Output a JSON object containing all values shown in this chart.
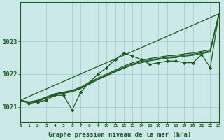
{
  "hours": [
    0,
    1,
    2,
    3,
    4,
    5,
    6,
    7,
    8,
    9,
    10,
    11,
    12,
    13,
    14,
    15,
    16,
    17,
    18,
    19,
    20,
    21,
    22,
    23
  ],
  "main_line": [
    1021.2,
    1021.1,
    1021.15,
    1021.2,
    1021.35,
    1021.35,
    1020.9,
    1021.45,
    1021.75,
    1022.0,
    1022.2,
    1022.45,
    1022.65,
    1022.55,
    1022.45,
    1022.3,
    1022.35,
    1022.4,
    1022.4,
    1022.35,
    1022.35,
    1022.6,
    1022.2,
    1023.85
  ],
  "smooth1": [
    1021.2,
    1021.15,
    1021.2,
    1021.3,
    1021.4,
    1021.45,
    1021.5,
    1021.6,
    1021.75,
    1021.88,
    1022.0,
    1022.12,
    1022.25,
    1022.35,
    1022.42,
    1022.48,
    1022.52,
    1022.56,
    1022.58,
    1022.62,
    1022.65,
    1022.7,
    1022.75,
    1023.85
  ],
  "smooth2": [
    1021.2,
    1021.14,
    1021.18,
    1021.28,
    1021.38,
    1021.43,
    1021.48,
    1021.58,
    1021.72,
    1021.85,
    1021.97,
    1022.09,
    1022.21,
    1022.31,
    1022.38,
    1022.44,
    1022.48,
    1022.52,
    1022.54,
    1022.58,
    1022.61,
    1022.66,
    1022.71,
    1023.85
  ],
  "smooth3": [
    1021.2,
    1021.13,
    1021.17,
    1021.26,
    1021.36,
    1021.41,
    1021.46,
    1021.56,
    1021.7,
    1021.83,
    1021.95,
    1022.07,
    1022.18,
    1022.28,
    1022.35,
    1022.41,
    1022.45,
    1022.49,
    1022.51,
    1022.55,
    1022.58,
    1022.63,
    1022.68,
    1023.85
  ],
  "trend_low": [
    1021.2,
    1023.85
  ],
  "trend_high": [
    1021.2,
    1023.85
  ],
  "yticks": [
    1021,
    1022,
    1023
  ],
  "xtick_labels": [
    "0",
    "1",
    "2",
    "3",
    "4",
    "5",
    "6",
    "7",
    "8",
    "9",
    "10",
    "11",
    "12",
    "13",
    "14",
    "15",
    "16",
    "17",
    "18",
    "19",
    "20",
    "21",
    "22",
    "23"
  ],
  "xlabel": "Graphe pression niveau de la mer (hPa)",
  "bg_color": "#cce8e8",
  "grid_color": "#99cccc",
  "line_color": "#1a5c1a",
  "ylim": [
    1020.55,
    1024.2
  ],
  "xlim": [
    0,
    23
  ]
}
